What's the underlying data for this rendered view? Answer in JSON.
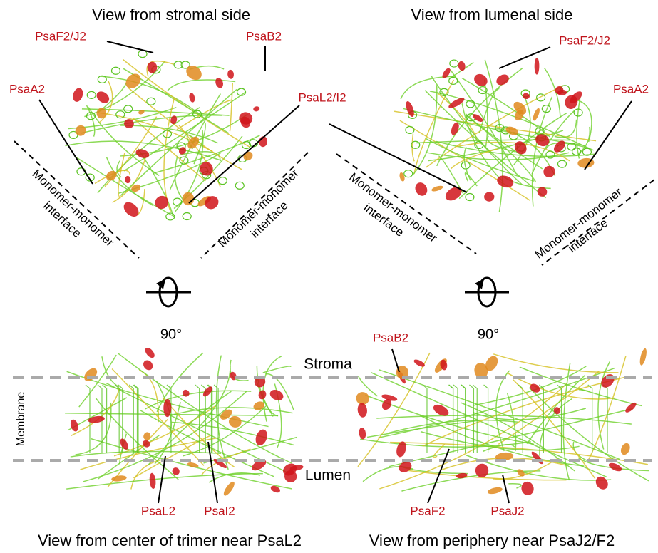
{
  "top_left": {
    "title": "View from stromal side",
    "labels": [
      "PsaF2/J2",
      "PsaB2",
      "PsaA2",
      "PsaL2/I2"
    ],
    "interfaces": [
      [
        "Monomer-monomer",
        "interface"
      ],
      [
        "Monomer-monomer",
        "interface"
      ]
    ],
    "rotation": "90°"
  },
  "top_right": {
    "title": "View from lumenal side",
    "labels": [
      "PsaF2/J2",
      "PsaA2"
    ],
    "interfaces": [
      [
        "Monomer-monomer",
        "interface"
      ],
      [
        "Monomer-monomer",
        "interface"
      ]
    ],
    "rotation": "90°"
  },
  "membrane": {
    "top": "Stroma",
    "middle": "Membrane",
    "bottom": "Lumen"
  },
  "bottom_left": {
    "caption": "View from center of trimer near PsaL2",
    "labels": [
      "PsaL2",
      "PsaI2"
    ]
  },
  "bottom_right": {
    "caption": "View from periphery near PsaJ2/F2",
    "labels": [
      "PsaB2",
      "PsaF2",
      "PsaJ2"
    ]
  }
}
